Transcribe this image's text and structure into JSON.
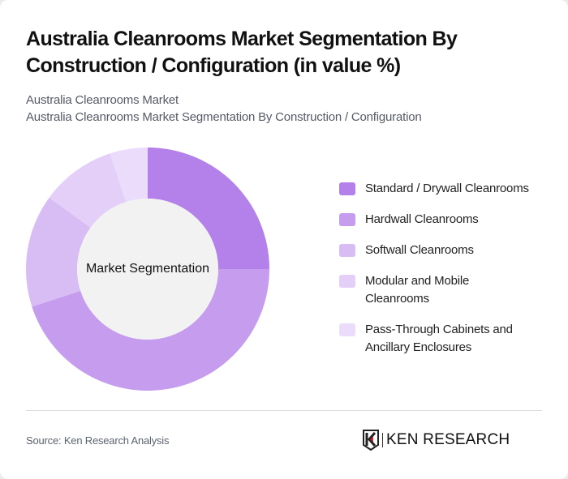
{
  "header": {
    "title": "Australia Cleanrooms Market Segmentation By Construction / Configuration (in value %)",
    "subtitle_line1": "Australia Cleanrooms Market",
    "subtitle_line2": "Australia Cleanrooms Market Segmentation By Construction / Configuration"
  },
  "chart": {
    "center_label": "Market Segmentation"
  },
  "footer": {
    "source": "Source: Ken Research Analysis",
    "logo_text": "KEN RESEARCH"
  },
  "chart_data": {
    "type": "pie",
    "subtype": "donut",
    "title": "Australia Cleanrooms Market Segmentation By Construction / Configuration (in value %)",
    "center_label": "Market Segmentation",
    "legend_position": "right",
    "categories": [
      "Standard / Drywall Cleanrooms",
      "Hardwall Cleanrooms",
      "Softwall Cleanrooms",
      "Modular and Mobile Cleanrooms",
      "Pass-Through Cabinets and Ancillary Enclosures"
    ],
    "values": [
      25,
      45,
      15,
      10,
      5
    ],
    "colors": [
      "#b480ea",
      "#c59cee",
      "#d8bdf5",
      "#e3cff8",
      "#eadcfa"
    ],
    "unit": "%"
  }
}
